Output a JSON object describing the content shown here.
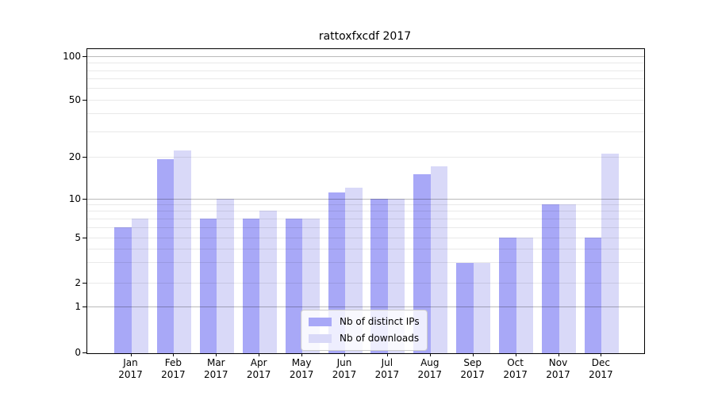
{
  "title": "rattoxfxcdf 2017",
  "chart_data": {
    "type": "bar",
    "title": "rattoxfxcdf 2017",
    "categories": [
      "Jan 2017",
      "Feb 2017",
      "Mar 2017",
      "Apr 2017",
      "May 2017",
      "Jun 2017",
      "Jul 2017",
      "Aug 2017",
      "Sep 2017",
      "Oct 2017",
      "Nov 2017",
      "Dec 2017"
    ],
    "x_tick_months": [
      "Jan",
      "Feb",
      "Mar",
      "Apr",
      "May",
      "Jun",
      "Jul",
      "Aug",
      "Sep",
      "Oct",
      "Nov",
      "Dec"
    ],
    "x_tick_year": "2017",
    "series": [
      {
        "name": "Nb of distinct IPs",
        "color": "#a8a8f7",
        "values": [
          6,
          19,
          7,
          7,
          7,
          11,
          10,
          15,
          3,
          5,
          9,
          5
        ]
      },
      {
        "name": "Nb of downloads",
        "color": "#d9d9f8",
        "values": [
          7,
          22,
          10,
          8,
          7,
          12,
          10,
          17,
          3,
          5,
          9,
          21
        ]
      }
    ],
    "xlabel": "",
    "ylabel": "",
    "yscale": "log-like with linear zero segment",
    "y_ticks": [
      0,
      1,
      2,
      5,
      10,
      20,
      50,
      100
    ],
    "y_major_gridlines": [
      1,
      10,
      100
    ],
    "y_light_gridlines": [
      2,
      3,
      4,
      5,
      6,
      7,
      8,
      9,
      20,
      30,
      40,
      50,
      60,
      70,
      80,
      90
    ],
    "ylim": [
      0,
      113
    ],
    "grid": true,
    "legend_position": "lower center"
  },
  "colors": {
    "bar_distinct_ips": "#a8a8f7",
    "bar_downloads": "#d9d9f8",
    "grid_major": "#bdbdbd",
    "grid_minor": "#ececec",
    "axis": "#000000",
    "legend_border": "#cccccc",
    "background": "#ffffff"
  }
}
